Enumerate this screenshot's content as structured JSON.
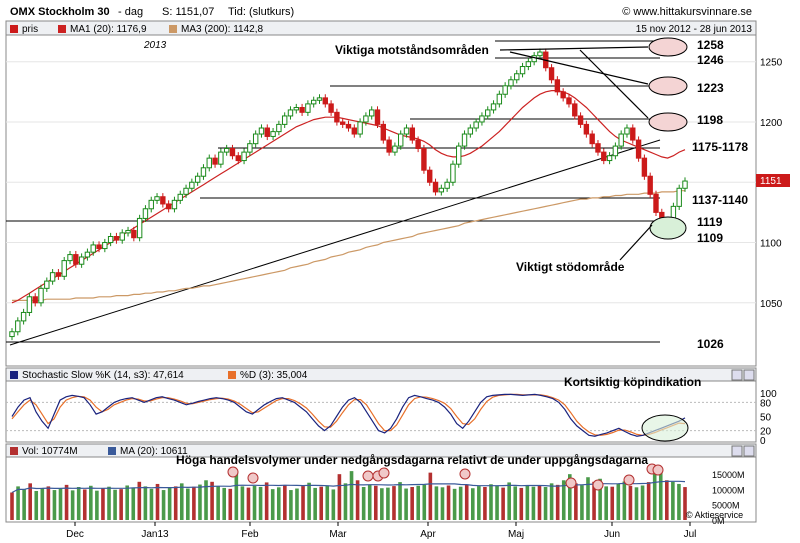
{
  "header": {
    "symbol": "OMX Stockholm 30",
    "period": "- dag",
    "last": "S: 1151,07",
    "time": "Tid: (slutkurs)",
    "site": "© www.hittakursvinnare.se",
    "range": "15 nov 2012 - 28 jun 2013",
    "year_label": "2013"
  },
  "colors": {
    "up": "#1a8a1a",
    "down": "#cc1a1a",
    "ma20": "#cc2222",
    "ma200": "#cc9966",
    "stochK": "#1a237e",
    "stochD": "#e8702a",
    "volUp": "#4a9a4a",
    "volDown": "#b33030",
    "volMA": "#3a5a9a"
  },
  "price_panel": {
    "legend": [
      {
        "label": "pris",
        "color": "#cc1a1a"
      },
      {
        "label": "MA1 (20): 1176,9",
        "color": "#cc2222"
      },
      {
        "label": "MA3 (200): 1142,8",
        "color": "#cc9966"
      }
    ],
    "current_price_tag": "1151",
    "annotations": {
      "resistance": "Viktiga motståndsområden",
      "support": "Viktigt stödområde"
    },
    "levels": [
      "1258",
      "1246",
      "1223",
      "1198",
      "1175-1178",
      "1137-1140",
      "1119",
      "1109",
      "1026"
    ]
  },
  "stoch_panel": {
    "legend": [
      {
        "label": "Stochastic Slow %K (14, s3): 47,614",
        "color": "#1a237e"
      },
      {
        "label": "%D (3): 35,004",
        "color": "#e8702a"
      }
    ],
    "annotation": "Kortsiktig köpindikation",
    "ticks": [
      "100",
      "80",
      "50",
      "20",
      "0"
    ]
  },
  "volume_panel": {
    "legend": [
      {
        "label": "Vol: 10774M",
        "color": "#b33030"
      },
      {
        "label": "MA (20): 10611",
        "color": "#3a5a9a"
      }
    ],
    "annotation": "Höga handelsvolymer under nedgångsdagarna relativt de under uppgångsdagarna",
    "ticks": [
      "15000M",
      "10000M",
      "5000M",
      "0M"
    ],
    "credit": "© Aktieservice"
  },
  "x_labels": [
    "Dec",
    "Jan13",
    "Feb",
    "Mar",
    "Apr",
    "Maj",
    "Jun",
    "Jul"
  ],
  "chart_data": [
    {
      "type": "line",
      "title": "OMX Stockholm 30",
      "x_range": [
        "2012-11-15",
        "2013-06-28"
      ],
      "y_ticks": [
        1050,
        1100,
        1150,
        1200,
        1250
      ],
      "ylim": [
        1015,
        1268
      ],
      "series": [
        {
          "name": "pris",
          "values": [
            1026,
            1035,
            1042,
            1055,
            1050,
            1062,
            1068,
            1075,
            1072,
            1085,
            1090,
            1082,
            1088,
            1092,
            1098,
            1095,
            1100,
            1105,
            1102,
            1108,
            1110,
            1104,
            1120,
            1128,
            1135,
            1138,
            1132,
            1128,
            1135,
            1140,
            1145,
            1150,
            1155,
            1162,
            1170,
            1165,
            1175,
            1178,
            1172,
            1168,
            1175,
            1182,
            1190,
            1195,
            1188,
            1192,
            1198,
            1205,
            1210,
            1212,
            1208,
            1215,
            1218,
            1220,
            1215,
            1208,
            1200,
            1198,
            1195,
            1190,
            1200,
            1205,
            1210,
            1198,
            1185,
            1175,
            1180,
            1190,
            1195,
            1185,
            1178,
            1160,
            1150,
            1142,
            1145,
            1150,
            1165,
            1180,
            1190,
            1195,
            1200,
            1205,
            1210,
            1215,
            1223,
            1230,
            1235,
            1240,
            1246,
            1250,
            1255,
            1258,
            1245,
            1235,
            1225,
            1220,
            1215,
            1205,
            1198,
            1190,
            1182,
            1175,
            1168,
            1172,
            1180,
            1190,
            1195,
            1185,
            1170,
            1155,
            1140,
            1125,
            1112,
            1118,
            1130,
            1145,
            1151
          ]
        },
        {
          "name": "MA1 (20)",
          "values": [
            1050,
            1052,
            1055,
            1058,
            1061,
            1064,
            1067,
            1070,
            1073,
            1076,
            1079,
            1082,
            1085,
            1088,
            1091,
            1094,
            1097,
            1100,
            1103,
            1106,
            1109,
            1112,
            1115,
            1118,
            1121,
            1124,
            1127,
            1130,
            1133,
            1136,
            1139,
            1142,
            1145,
            1148,
            1151,
            1154,
            1157,
            1160,
            1163,
            1166,
            1169,
            1172,
            1175,
            1178,
            1181,
            1184,
            1187,
            1190,
            1193,
            1196,
            1198,
            1200,
            1202,
            1203,
            1204,
            1204,
            1204,
            1203,
            1202,
            1201,
            1200,
            1199,
            1198,
            1197,
            1195,
            1193,
            1191,
            1189,
            1188,
            1187,
            1186,
            1184,
            1181,
            1177,
            1174,
            1172,
            1171,
            1171,
            1172,
            1174,
            1177,
            1180,
            1184,
            1188,
            1192,
            1197,
            1202,
            1207,
            1212,
            1216,
            1220,
            1223,
            1225,
            1226,
            1226,
            1225,
            1223,
            1220,
            1216,
            1212,
            1207,
            1202,
            1197,
            1192,
            1188,
            1185,
            1183,
            1181,
            1179,
            1177,
            1175,
            1173,
            1171,
            1170,
            1172,
            1175,
            1177
          ]
        },
        {
          "name": "MA3 (200)",
          "values": [
            1052,
            1052,
            1052,
            1052,
            1052,
            1052,
            1053,
            1053,
            1053,
            1053,
            1053,
            1054,
            1054,
            1054,
            1054,
            1055,
            1055,
            1055,
            1056,
            1056,
            1056,
            1057,
            1057,
            1058,
            1058,
            1059,
            1059,
            1060,
            1060,
            1061,
            1062,
            1062,
            1063,
            1064,
            1064,
            1065,
            1066,
            1067,
            1068,
            1069,
            1070,
            1071,
            1072,
            1073,
            1074,
            1075,
            1076,
            1077,
            1079,
            1080,
            1081,
            1082,
            1084,
            1085,
            1086,
            1088,
            1089,
            1090,
            1092,
            1093,
            1094,
            1096,
            1097,
            1098,
            1100,
            1101,
            1102,
            1103,
            1104,
            1105,
            1107,
            1108,
            1109,
            1110,
            1111,
            1112,
            1113,
            1114,
            1116,
            1117,
            1118,
            1119,
            1120,
            1121,
            1122,
            1123,
            1124,
            1125,
            1126,
            1127,
            1128,
            1129,
            1130,
            1131,
            1132,
            1133,
            1134,
            1135,
            1136,
            1136,
            1137,
            1137,
            1138,
            1138,
            1139,
            1139,
            1140,
            1140,
            1140,
            1141,
            1141,
            1141,
            1142,
            1142,
            1142,
            1143,
            1143
          ]
        }
      ]
    },
    {
      "type": "line",
      "title": "Stochastic Slow %K (14, s3)",
      "ylim": [
        0,
        100
      ],
      "series": [
        {
          "name": "%K",
          "values": [
            50,
            70,
            85,
            90,
            60,
            40,
            25,
            55,
            85,
            92,
            95,
            93,
            90,
            75,
            55,
            60,
            70,
            80,
            85,
            88,
            90,
            85,
            80,
            85,
            90,
            92,
            88,
            85,
            80,
            75,
            78,
            82,
            85,
            88,
            90,
            88,
            85,
            80,
            70,
            60,
            55,
            65,
            75,
            82,
            88,
            90,
            85,
            80,
            70,
            60,
            45,
            30,
            20,
            30,
            50,
            70,
            85,
            90,
            80,
            60,
            40,
            20,
            15,
            25,
            45,
            70,
            90,
            95,
            92,
            88,
            85,
            80,
            70,
            55,
            35,
            25,
            40,
            60,
            80,
            92,
            95,
            96,
            97,
            97,
            96,
            95,
            96,
            97,
            95,
            92,
            88,
            80,
            65,
            45,
            30,
            20,
            10,
            8,
            12,
            15,
            20,
            25,
            18,
            12,
            8,
            10,
            15,
            20,
            25,
            30,
            35,
            40,
            47
          ]
        },
        {
          "name": "%D",
          "values": [
            45,
            60,
            75,
            85,
            75,
            55,
            35,
            45,
            70,
            85,
            90,
            93,
            92,
            85,
            70,
            60,
            65,
            75,
            80,
            85,
            88,
            87,
            83,
            83,
            87,
            90,
            90,
            87,
            83,
            78,
            77,
            80,
            83,
            86,
            88,
            89,
            87,
            83,
            76,
            67,
            58,
            60,
            68,
            76,
            84,
            88,
            88,
            84,
            77,
            68,
            55,
            40,
            28,
            27,
            40,
            58,
            75,
            86,
            86,
            75,
            55,
            35,
            20,
            20,
            32,
            53,
            75,
            88,
            92,
            91,
            88,
            84,
            78,
            67,
            50,
            35,
            33,
            45,
            65,
            82,
            91,
            95,
            96,
            97,
            97,
            96,
            96,
            96,
            96,
            94,
            90,
            85,
            75,
            58,
            40,
            27,
            17,
            11,
            10,
            12,
            16,
            21,
            21,
            17,
            12,
            10,
            12,
            16,
            21,
            26,
            31,
            36,
            35
          ]
        }
      ]
    },
    {
      "type": "bar",
      "title": "Vol",
      "ylim": [
        0,
        18000
      ],
      "series": [
        {
          "name": "Vol",
          "values": [
            9000,
            11000,
            10000,
            12000,
            9500,
            10500,
            11000,
            9800,
            10200,
            11500,
            9700,
            10800,
            10000,
            11200,
            9600,
            10400,
            10900,
            9900,
            10100,
            11300,
            10600,
            12500,
            11000,
            10200,
            11800,
            9800,
            10500,
            11000,
            12000,
            10300,
            10900,
            11600,
            13000,
            12500,
            11000,
            10500,
            10200,
            16000,
            11000,
            10600,
            11200,
            10800,
            12300,
            10100,
            10700,
            11400,
            9800,
            10300,
            11100,
            12200,
            10500,
            10900,
            11300,
            10000,
            15000,
            12000,
            16000,
            13000,
            10800,
            11500,
            11200,
            10400,
            10600,
            11100,
            12400,
            10300,
            10800,
            11200,
            11500,
            15500,
            11000,
            10700,
            11300,
            10200,
            10900,
            11600,
            10400,
            11100,
            10800,
            11700,
            11200,
            10600,
            12300,
            11000,
            10500,
            11200,
            10900,
            11400,
            10800,
            12000,
            11500,
            13000,
            15000,
            12000,
            11400,
            14000,
            12500,
            13500,
            11000,
            10900,
            11800,
            12600,
            11200,
            10700,
            11300,
            12400,
            17000,
            16000,
            13000,
            12500,
            11800,
            10774
          ]
        }
      ]
    }
  ]
}
